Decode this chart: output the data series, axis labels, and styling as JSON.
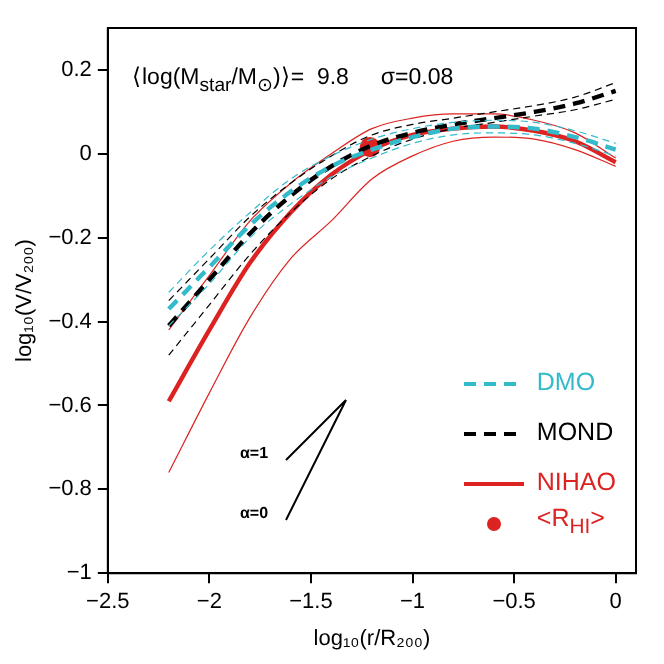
{
  "chart_data": {
    "type": "line",
    "xlabel": "log₁₀(r/R₂₀₀)",
    "ylabel": "log₁₀(V/V₂₀₀)",
    "annotations": [
      "⟨log(M$_{star}$/M$_{⊙}$)⟩=  9.8     σ=0.08",
      "α=1",
      "α=0"
    ],
    "x": [
      -2.2,
      -2.0,
      -1.8,
      -1.6,
      -1.4,
      -1.2,
      -1.0,
      -0.8,
      -0.6,
      -0.4,
      -0.2,
      0
    ],
    "xlim": [
      -2.5,
      0.1
    ],
    "xticks": [
      -2.5,
      -2,
      -1.5,
      -1,
      -0.5,
      0
    ],
    "ylim": [
      -1,
      0.3
    ],
    "yticks": [
      -1,
      -0.8,
      -0.6,
      -0.4,
      -0.2,
      0,
      0.2
    ],
    "legend": "bottom right",
    "series": [
      {
        "name": "DMO",
        "color": "#33bbcc",
        "line_style": "dashed",
        "marker": "none",
        "values": [
          -0.37,
          -0.27,
          -0.17,
          -0.09,
          -0.03,
          0.01,
          0.04,
          0.06,
          0.065,
          0.06,
          0.04,
          0.01
        ]
      },
      {
        "color": "#33bbcc",
        "line_style": "dashed",
        "marker": "none",
        "values": [
          -0.41,
          -0.31,
          -0.2,
          -0.12,
          -0.055,
          -0.01,
          0.025,
          0.045,
          0.05,
          0.045,
          0.025,
          -0.005
        ]
      },
      {
        "color": "#33bbcc",
        "line_style": "dashed",
        "marker": "none",
        "values": [
          -0.33,
          -0.23,
          -0.14,
          -0.06,
          -0.005,
          0.035,
          0.06,
          0.075,
          0.08,
          0.075,
          0.055,
          0.025
        ]
      },
      {
        "name": "MOND",
        "color": "#000000",
        "line_style": "dashed",
        "marker": "none",
        "values": [
          -0.41,
          -0.3,
          -0.19,
          -0.1,
          -0.03,
          0.02,
          0.05,
          0.07,
          0.085,
          0.1,
          0.12,
          0.15
        ]
      },
      {
        "color": "#000000",
        "line_style": "dashed",
        "marker": "none",
        "values": [
          -0.48,
          -0.36,
          -0.24,
          -0.14,
          -0.06,
          -0.005,
          0.035,
          0.06,
          0.075,
          0.09,
          0.105,
          0.13
        ]
      },
      {
        "color": "#000000",
        "line_style": "dashed",
        "marker": "none",
        "values": [
          -0.35,
          -0.25,
          -0.15,
          -0.07,
          -0.005,
          0.045,
          0.07,
          0.085,
          0.1,
          0.115,
          0.135,
          0.17
        ]
      },
      {
        "name": "NIHAO",
        "color": "#dd2222",
        "line_style": "solid",
        "marker": "none",
        "values": [
          -0.59,
          -0.42,
          -0.26,
          -0.14,
          -0.05,
          0.01,
          0.045,
          0.06,
          0.065,
          0.055,
          0.03,
          -0.02
        ]
      },
      {
        "color": "#dd2222",
        "line_style": "solid",
        "marker": "none",
        "values": [
          -0.76,
          -0.57,
          -0.39,
          -0.25,
          -0.16,
          -0.06,
          -0.005,
          0.03,
          0.04,
          0.035,
          0.01,
          -0.03
        ]
      },
      {
        "color": "#dd2222",
        "line_style": "solid",
        "marker": "none",
        "values": [
          -0.42,
          -0.29,
          -0.16,
          -0.07,
          0.0,
          0.06,
          0.085,
          0.095,
          0.095,
          0.08,
          0.05,
          -0.01
        ]
      },
      {
        "name": "<R$_{HI}$>",
        "type": "scatter",
        "color": "#dd2222",
        "marker": "circle",
        "x": [
          -1.21
        ],
        "values": [
          0.016
        ]
      }
    ]
  }
}
